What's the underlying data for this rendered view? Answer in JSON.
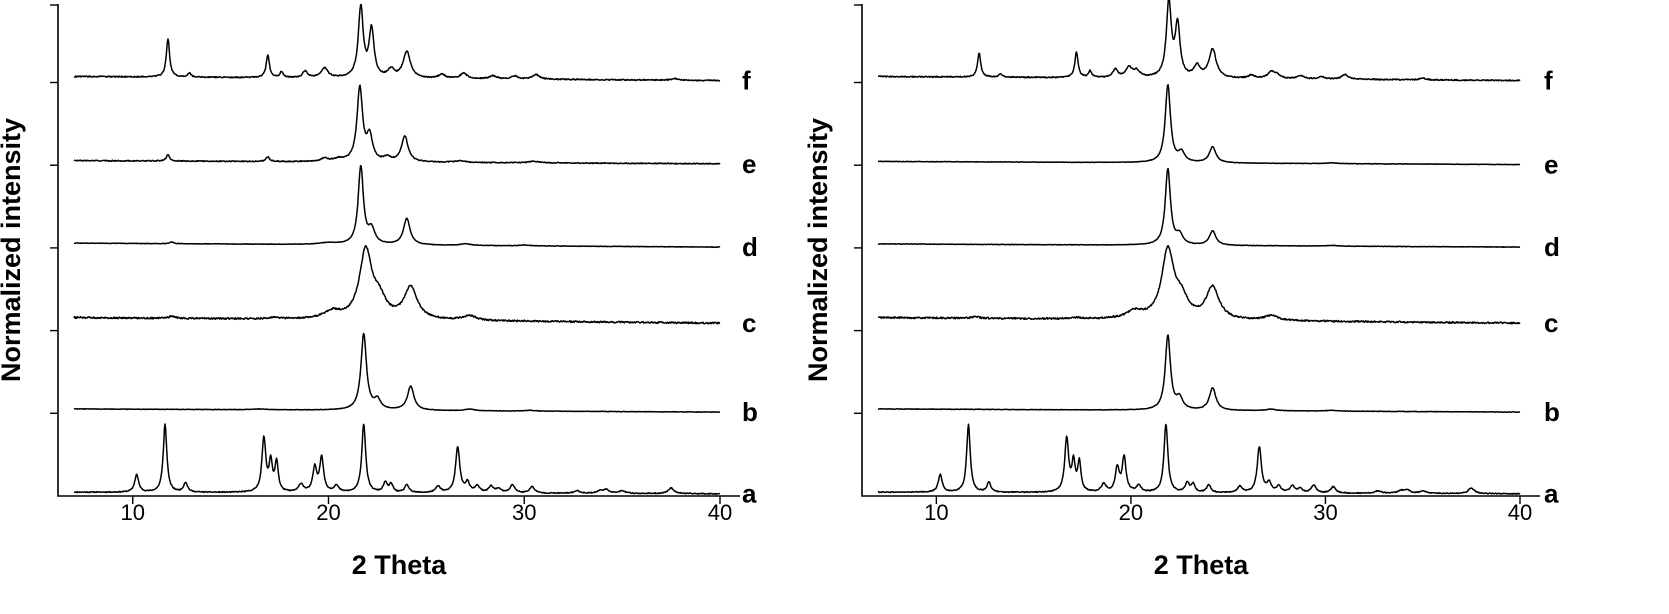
{
  "chart_data": [
    {
      "type": "line",
      "xlabel": "2 Theta",
      "ylabel": "Normalized intensity",
      "xlim": [
        7,
        40
      ],
      "x_ticks": [
        10,
        20,
        30,
        40
      ],
      "y_tick_count": 6,
      "grid": false,
      "legend": "none",
      "series": [
        {
          "name": "a",
          "baseline": 0.06,
          "slope": -0.02,
          "noise": 0.006,
          "peaks": [
            [
              10.2,
              0.22,
              0.12
            ],
            [
              11.65,
              0.85,
              0.11
            ],
            [
              12.7,
              0.12,
              0.12
            ],
            [
              16.7,
              0.67,
              0.12
            ],
            [
              17.05,
              0.36,
              0.1
            ],
            [
              17.35,
              0.37,
              0.1
            ],
            [
              18.6,
              0.1,
              0.15
            ],
            [
              19.3,
              0.3,
              0.12
            ],
            [
              19.65,
              0.43,
              0.12
            ],
            [
              20.4,
              0.08,
              0.15
            ],
            [
              21.8,
              0.86,
              0.12
            ],
            [
              22.9,
              0.12,
              0.12
            ],
            [
              23.2,
              0.1,
              0.12
            ],
            [
              24.0,
              0.1,
              0.12
            ],
            [
              25.6,
              0.08,
              0.15
            ],
            [
              26.6,
              0.57,
              0.13
            ],
            [
              27.1,
              0.12,
              0.13
            ],
            [
              27.6,
              0.08,
              0.15
            ],
            [
              28.3,
              0.08,
              0.15
            ],
            [
              28.7,
              0.05,
              0.15
            ],
            [
              29.4,
              0.1,
              0.15
            ],
            [
              30.4,
              0.08,
              0.15
            ],
            [
              32.7,
              0.03,
              0.2
            ],
            [
              33.9,
              0.03,
              0.2
            ],
            [
              34.2,
              0.04,
              0.2
            ],
            [
              35.0,
              0.03,
              0.2
            ],
            [
              37.5,
              0.07,
              0.18
            ]
          ]
        },
        {
          "name": "b",
          "baseline": 0.07,
          "slope": -0.04,
          "noise": 0.003,
          "peaks": [
            [
              16.5,
              0.01,
              0.4
            ],
            [
              21.8,
              0.95,
              0.17
            ],
            [
              22.5,
              0.12,
              0.2
            ],
            [
              24.2,
              0.3,
              0.2
            ],
            [
              27.2,
              0.02,
              0.3
            ],
            [
              30.3,
              0.01,
              0.3
            ]
          ]
        },
        {
          "name": "c",
          "baseline": 0.18,
          "slope": -0.07,
          "noise": 0.01,
          "peaks": [
            [
              12.0,
              0.025,
              0.2
            ],
            [
              17.2,
              0.015,
              0.3
            ],
            [
              20.2,
              0.09,
              0.5
            ],
            [
              21.9,
              0.85,
              0.38
            ],
            [
              22.6,
              0.22,
              0.4
            ],
            [
              24.2,
              0.4,
              0.4
            ],
            [
              27.2,
              0.06,
              0.4
            ]
          ]
        },
        {
          "name": "d",
          "baseline": 0.08,
          "slope": -0.05,
          "noise": 0.003,
          "peaks": [
            [
              12.0,
              0.02,
              0.12
            ],
            [
              20.0,
              0.02,
              0.5
            ],
            [
              21.65,
              0.97,
              0.16
            ],
            [
              22.2,
              0.18,
              0.2
            ],
            [
              24.0,
              0.33,
              0.2
            ],
            [
              27.0,
              0.02,
              0.3
            ],
            [
              30.0,
              0.01,
              0.3
            ]
          ]
        },
        {
          "name": "e",
          "baseline": 0.08,
          "slope": -0.04,
          "noise": 0.006,
          "peaks": [
            [
              11.8,
              0.08,
              0.1
            ],
            [
              16.9,
              0.06,
              0.1
            ],
            [
              19.8,
              0.04,
              0.2
            ],
            [
              20.5,
              0.03,
              0.3
            ],
            [
              21.6,
              0.92,
              0.17
            ],
            [
              22.1,
              0.3,
              0.18
            ],
            [
              23.0,
              0.05,
              0.2
            ],
            [
              23.9,
              0.32,
              0.2
            ],
            [
              26.7,
              0.02,
              0.3
            ],
            [
              30.5,
              0.02,
              0.3
            ]
          ]
        },
        {
          "name": "f",
          "baseline": 0.1,
          "slope": -0.05,
          "noise": 0.007,
          "peaks": [
            [
              11.8,
              0.48,
              0.1
            ],
            [
              12.9,
              0.05,
              0.1
            ],
            [
              16.9,
              0.28,
              0.1
            ],
            [
              17.6,
              0.07,
              0.1
            ],
            [
              18.8,
              0.08,
              0.15
            ],
            [
              19.8,
              0.12,
              0.2
            ],
            [
              21.65,
              0.88,
              0.15
            ],
            [
              22.2,
              0.6,
              0.15
            ],
            [
              23.2,
              0.1,
              0.2
            ],
            [
              24.0,
              0.33,
              0.22
            ],
            [
              25.8,
              0.05,
              0.2
            ],
            [
              26.9,
              0.07,
              0.2
            ],
            [
              28.4,
              0.04,
              0.2
            ],
            [
              29.5,
              0.04,
              0.2
            ],
            [
              30.6,
              0.06,
              0.2
            ],
            [
              37.7,
              0.02,
              0.2
            ]
          ]
        }
      ]
    },
    {
      "type": "line",
      "xlabel": "2 Theta",
      "ylabel": "Normalized intensity",
      "xlim": [
        7,
        40
      ],
      "x_ticks": [
        10,
        20,
        30,
        40
      ],
      "y_tick_count": 6,
      "grid": false,
      "legend": "none",
      "series": [
        {
          "name": "a",
          "baseline": 0.06,
          "slope": -0.02,
          "noise": 0.006,
          "peaks": [
            [
              10.2,
              0.22,
              0.12
            ],
            [
              11.65,
              0.85,
              0.11
            ],
            [
              12.7,
              0.12,
              0.12
            ],
            [
              16.7,
              0.67,
              0.12
            ],
            [
              17.05,
              0.36,
              0.1
            ],
            [
              17.35,
              0.37,
              0.1
            ],
            [
              18.6,
              0.1,
              0.15
            ],
            [
              19.3,
              0.3,
              0.12
            ],
            [
              19.65,
              0.43,
              0.12
            ],
            [
              20.4,
              0.08,
              0.15
            ],
            [
              21.8,
              0.86,
              0.12
            ],
            [
              22.9,
              0.12,
              0.12
            ],
            [
              23.2,
              0.1,
              0.12
            ],
            [
              24.0,
              0.1,
              0.12
            ],
            [
              25.6,
              0.08,
              0.15
            ],
            [
              26.6,
              0.57,
              0.13
            ],
            [
              27.1,
              0.12,
              0.13
            ],
            [
              27.6,
              0.08,
              0.15
            ],
            [
              28.3,
              0.08,
              0.15
            ],
            [
              28.7,
              0.05,
              0.15
            ],
            [
              29.4,
              0.1,
              0.15
            ],
            [
              30.4,
              0.08,
              0.15
            ],
            [
              32.7,
              0.03,
              0.2
            ],
            [
              33.9,
              0.03,
              0.2
            ],
            [
              34.2,
              0.04,
              0.2
            ],
            [
              35.0,
              0.03,
              0.2
            ],
            [
              37.5,
              0.07,
              0.18
            ]
          ]
        },
        {
          "name": "b",
          "baseline": 0.07,
          "slope": -0.04,
          "noise": 0.003,
          "peaks": [
            [
              21.9,
              0.93,
              0.16
            ],
            [
              22.5,
              0.14,
              0.2
            ],
            [
              24.2,
              0.28,
              0.2
            ],
            [
              27.2,
              0.02,
              0.3
            ],
            [
              30.3,
              0.01,
              0.3
            ]
          ]
        },
        {
          "name": "c",
          "baseline": 0.18,
          "slope": -0.07,
          "noise": 0.01,
          "peaks": [
            [
              12.0,
              0.025,
              0.2
            ],
            [
              17.2,
              0.015,
              0.3
            ],
            [
              20.2,
              0.09,
              0.5
            ],
            [
              21.9,
              0.85,
              0.38
            ],
            [
              22.6,
              0.22,
              0.4
            ],
            [
              24.2,
              0.4,
              0.4
            ],
            [
              27.2,
              0.06,
              0.4
            ]
          ]
        },
        {
          "name": "d",
          "baseline": 0.07,
          "slope": -0.04,
          "noise": 0.003,
          "peaks": [
            [
              21.9,
              0.95,
              0.16
            ],
            [
              22.5,
              0.12,
              0.2
            ],
            [
              24.2,
              0.18,
              0.2
            ],
            [
              30.3,
              0.01,
              0.3
            ]
          ]
        },
        {
          "name": "e",
          "baseline": 0.07,
          "slope": -0.04,
          "noise": 0.003,
          "peaks": [
            [
              21.9,
              0.97,
              0.16
            ],
            [
              22.6,
              0.12,
              0.2
            ],
            [
              24.2,
              0.2,
              0.2
            ],
            [
              30.3,
              0.01,
              0.3
            ]
          ]
        },
        {
          "name": "f",
          "baseline": 0.1,
          "slope": -0.05,
          "noise": 0.007,
          "peaks": [
            [
              12.2,
              0.3,
              0.1
            ],
            [
              13.3,
              0.04,
              0.1
            ],
            [
              17.2,
              0.32,
              0.1
            ],
            [
              17.9,
              0.08,
              0.1
            ],
            [
              19.2,
              0.1,
              0.15
            ],
            [
              19.9,
              0.12,
              0.2
            ],
            [
              20.3,
              0.08,
              0.2
            ],
            [
              21.95,
              0.94,
              0.15
            ],
            [
              22.4,
              0.64,
              0.15
            ],
            [
              23.4,
              0.14,
              0.2
            ],
            [
              24.2,
              0.36,
              0.22
            ],
            [
              26.2,
              0.04,
              0.2
            ],
            [
              27.2,
              0.08,
              0.2
            ],
            [
              27.5,
              0.05,
              0.2
            ],
            [
              28.7,
              0.04,
              0.2
            ],
            [
              29.8,
              0.03,
              0.2
            ],
            [
              31.0,
              0.06,
              0.2
            ],
            [
              35.0,
              0.02,
              0.2
            ]
          ]
        }
      ]
    }
  ]
}
